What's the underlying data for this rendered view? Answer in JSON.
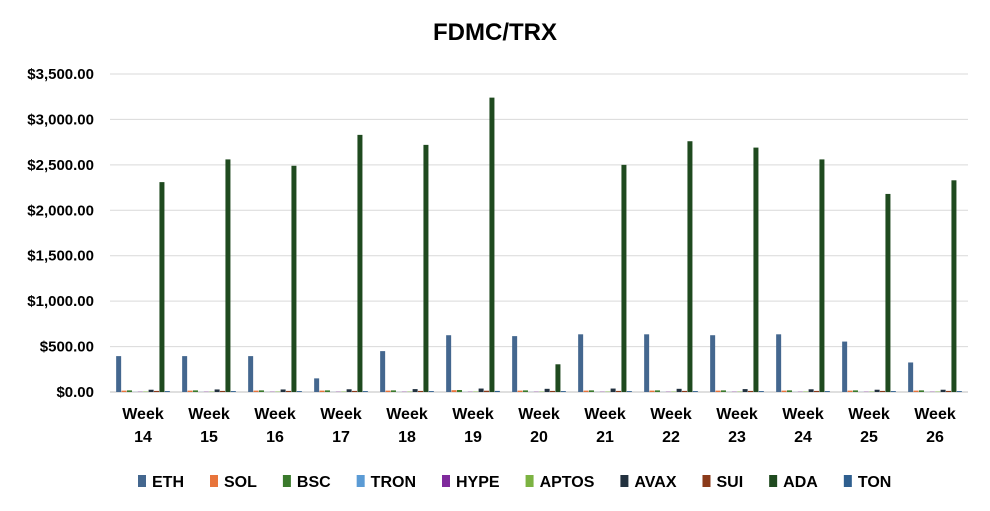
{
  "chart_data": {
    "type": "bar",
    "title": "FDMC/TRX",
    "xlabel": "",
    "ylabel": "",
    "ylim": [
      0,
      3500
    ],
    "yticks": [
      "$0.00",
      "$500.00",
      "$1,000.00",
      "$1,500.00",
      "$2,000.00",
      "$2,500.00",
      "$3,000.00",
      "$3,500.00"
    ],
    "ytick_values": [
      0,
      500,
      1000,
      1500,
      2000,
      2500,
      3000,
      3500
    ],
    "grid": true,
    "legend_position": "bottom",
    "categories": [
      [
        "Week",
        "14"
      ],
      [
        "Week",
        "15"
      ],
      [
        "Week",
        "16"
      ],
      [
        "Week",
        "17"
      ],
      [
        "Week",
        "18"
      ],
      [
        "Week",
        "19"
      ],
      [
        "Week",
        "20"
      ],
      [
        "Week",
        "21"
      ],
      [
        "Week",
        "22"
      ],
      [
        "Week",
        "23"
      ],
      [
        "Week",
        "24"
      ],
      [
        "Week",
        "25"
      ],
      [
        "Week",
        "26"
      ]
    ],
    "series": [
      {
        "name": "ETH",
        "color": "#44678f",
        "values": [
          395,
          395,
          395,
          150,
          450,
          625,
          615,
          635,
          635,
          625,
          635,
          555,
          325
        ]
      },
      {
        "name": "SOL",
        "color": "#e8743b",
        "values": [
          15,
          15,
          15,
          15,
          15,
          20,
          15,
          15,
          15,
          15,
          15,
          15,
          15
        ]
      },
      {
        "name": "BSC",
        "color": "#3a7a2c",
        "values": [
          18,
          18,
          18,
          18,
          18,
          22,
          18,
          18,
          18,
          18,
          18,
          18,
          18
        ]
      },
      {
        "name": "TRON",
        "color": "#5b9bd5",
        "values": [
          1,
          1,
          1,
          1,
          1,
          1,
          1,
          1,
          1,
          1,
          1,
          1,
          1
        ]
      },
      {
        "name": "HYPE",
        "color": "#7f2a9c",
        "values": [
          3,
          3,
          3,
          3,
          3,
          3,
          3,
          3,
          3,
          3,
          3,
          3,
          3
        ]
      },
      {
        "name": "APTOS",
        "color": "#7cb342",
        "values": [
          5,
          5,
          5,
          5,
          5,
          5,
          5,
          5,
          5,
          5,
          5,
          5,
          5
        ]
      },
      {
        "name": "AVAX",
        "color": "#22313f",
        "values": [
          25,
          28,
          28,
          30,
          32,
          38,
          35,
          38,
          35,
          32,
          30,
          25,
          25
        ]
      },
      {
        "name": "SUI",
        "color": "#8b3a1a",
        "values": [
          12,
          12,
          12,
          12,
          12,
          14,
          12,
          12,
          12,
          12,
          12,
          12,
          12
        ]
      },
      {
        "name": "ADA",
        "color": "#1f4a1f",
        "values": [
          2310,
          2560,
          2490,
          2830,
          2720,
          3240,
          305,
          2500,
          2760,
          2690,
          2560,
          2180,
          2330
        ]
      },
      {
        "name": "TON",
        "color": "#2f5f8f",
        "values": [
          10,
          10,
          10,
          10,
          10,
          12,
          10,
          10,
          10,
          10,
          10,
          10,
          10
        ]
      }
    ]
  }
}
